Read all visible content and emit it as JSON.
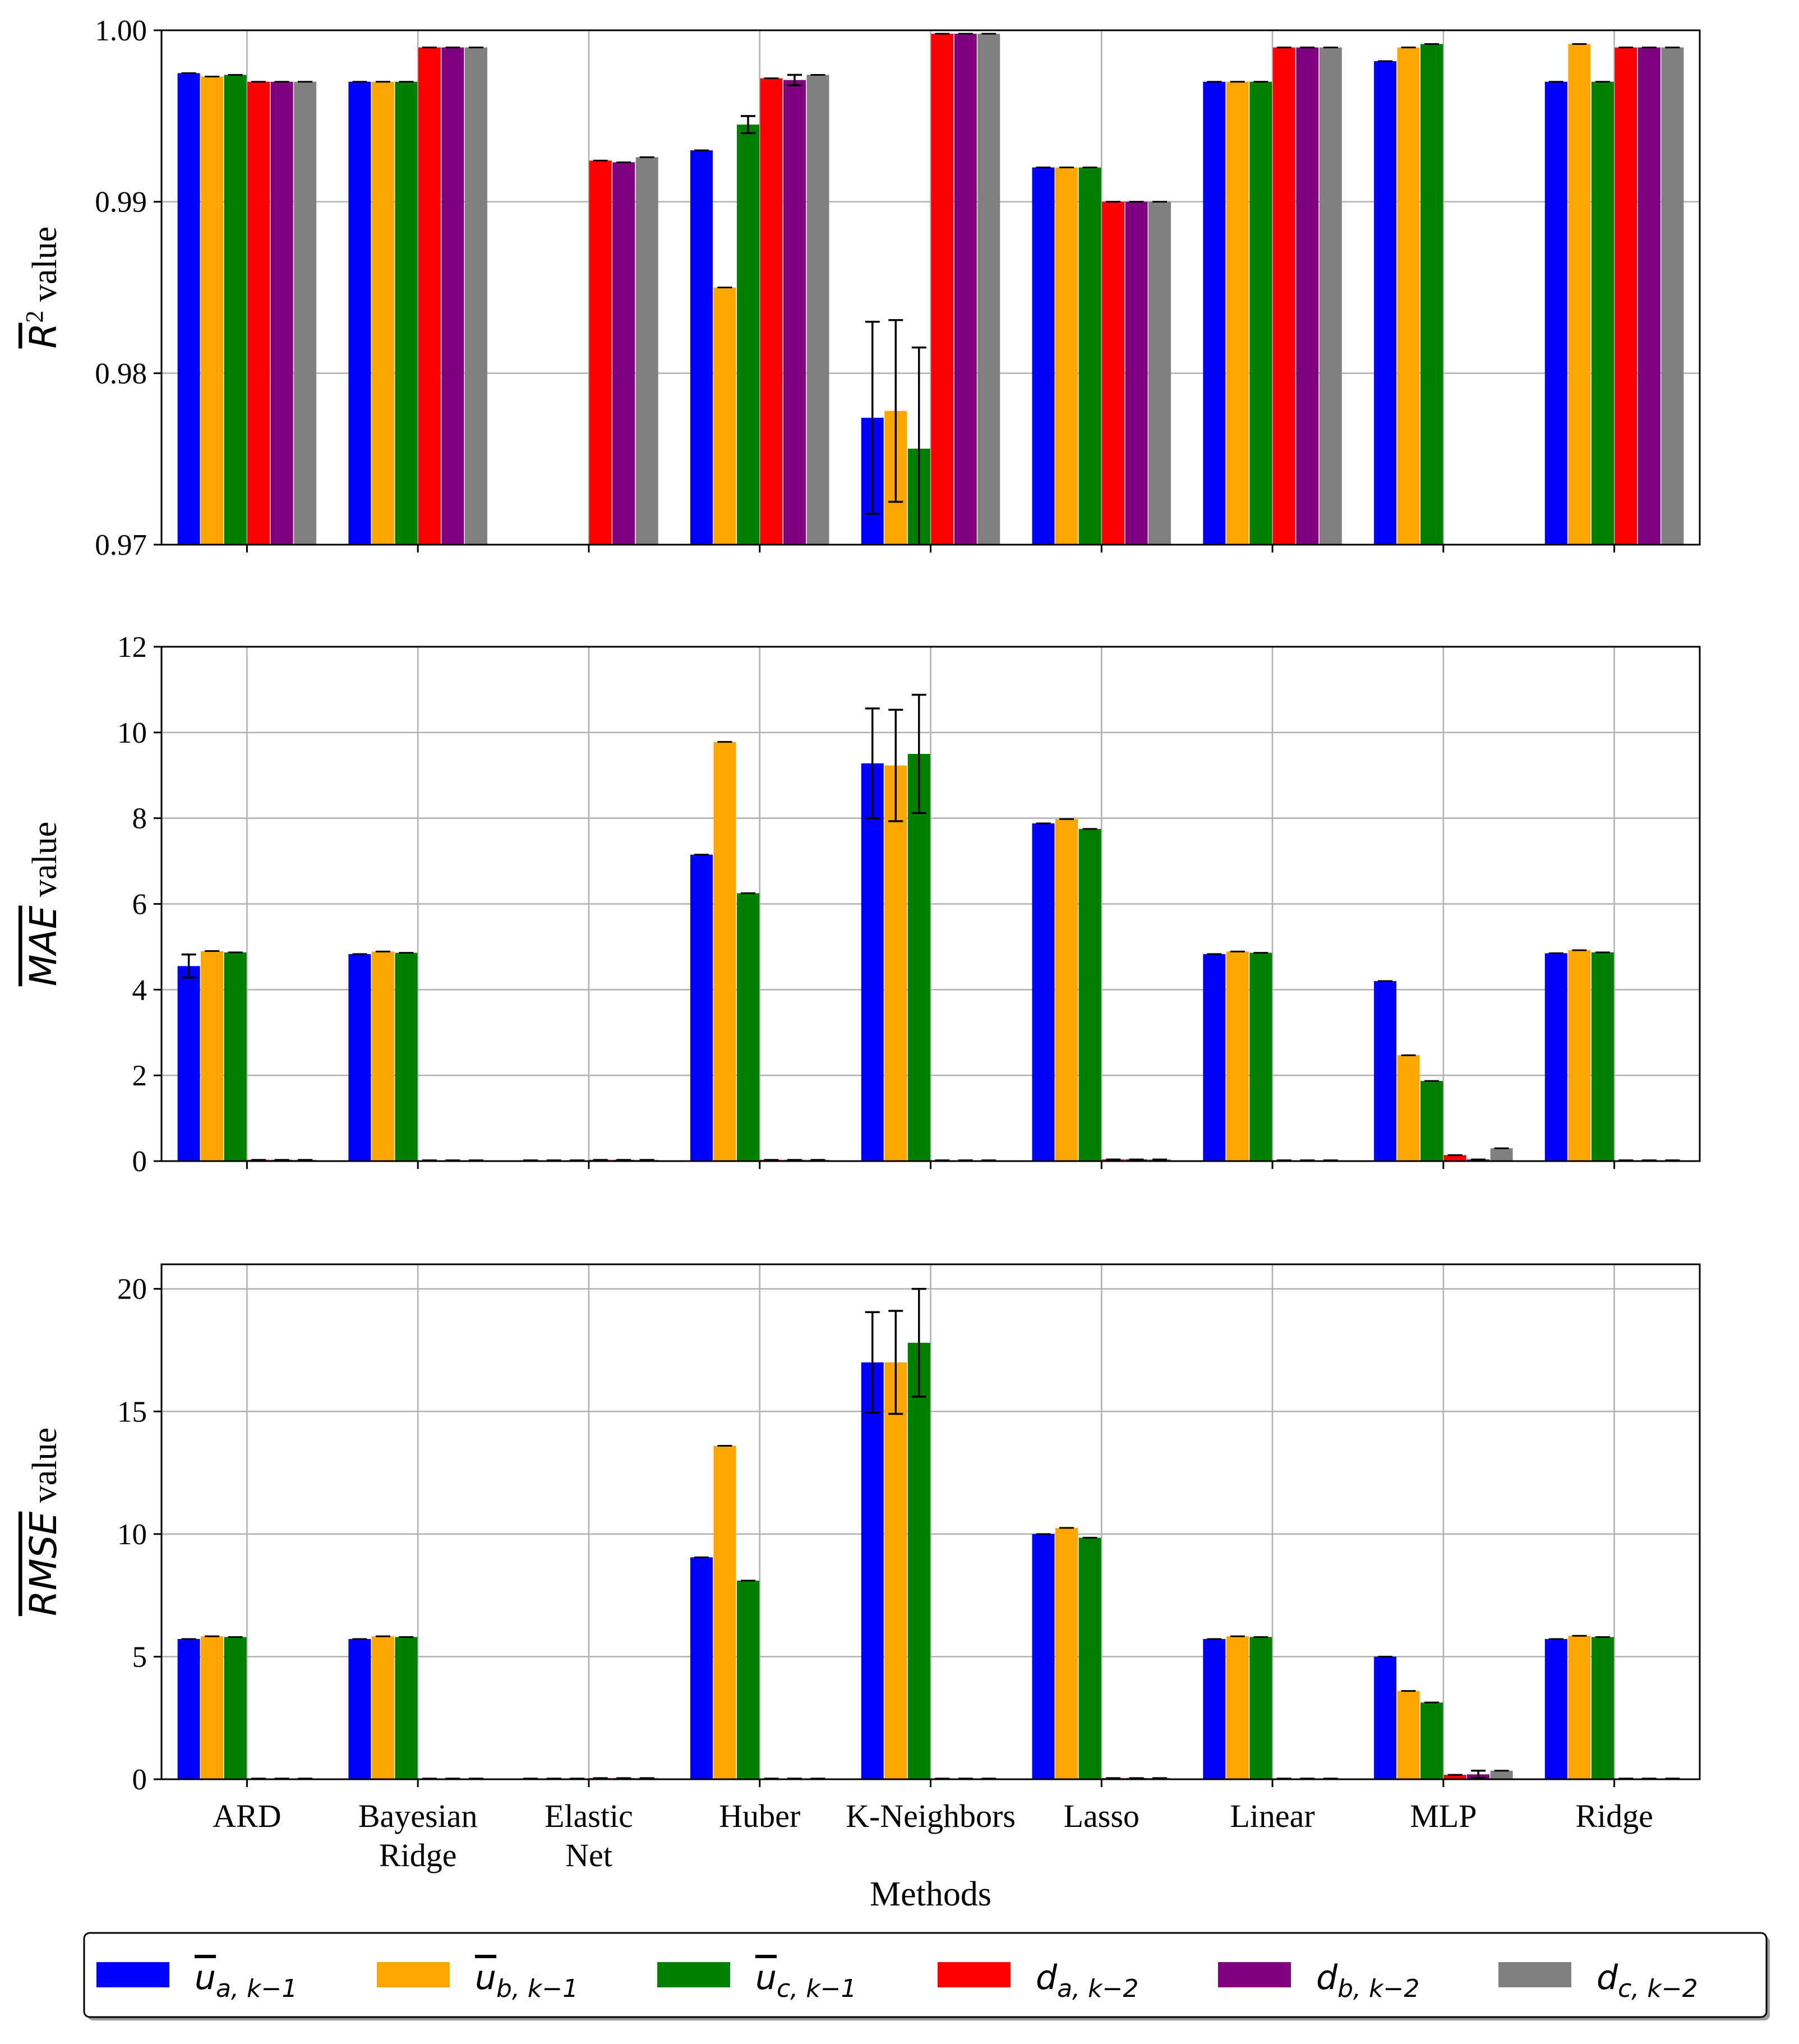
{
  "chart_data": {
    "type": "bar",
    "xlabel": "Methods",
    "categories": [
      [
        "ARD"
      ],
      [
        "Bayesian",
        "Ridge"
      ],
      [
        "Elastic",
        "Net"
      ],
      [
        "Huber"
      ],
      [
        "K-Neighbors"
      ],
      [
        "Lasso"
      ],
      [
        "Linear"
      ],
      [
        "MLP"
      ],
      [
        "Ridge"
      ]
    ],
    "series": [
      {
        "key": "ua",
        "color": "#0000ff",
        "legend": {
          "base": "u",
          "overline": true,
          "sub": "a, k−1"
        }
      },
      {
        "key": "ub",
        "color": "#ffa500",
        "legend": {
          "base": "u",
          "overline": true,
          "sub": "b, k−1"
        }
      },
      {
        "key": "uc",
        "color": "#008000",
        "legend": {
          "base": "u",
          "overline": true,
          "sub": "c, k−1"
        }
      },
      {
        "key": "da",
        "color": "#ff0000",
        "legend": {
          "base": "d",
          "overline": false,
          "sub": "a, k−2"
        }
      },
      {
        "key": "db",
        "color": "#800080",
        "legend": {
          "base": "d",
          "overline": false,
          "sub": "b, k−2"
        }
      },
      {
        "key": "dc",
        "color": "#808080",
        "legend": {
          "base": "d",
          "overline": false,
          "sub": "c, k−2"
        }
      }
    ],
    "panels": [
      {
        "id": "r2",
        "ylabel": {
          "main": "R",
          "sup": "2",
          "suffix": " value"
        },
        "ylim": [
          0.97,
          1.0
        ],
        "yticks": [
          0.97,
          0.98,
          0.99,
          1.0
        ],
        "ytick_labels": [
          "0.97",
          "0.98",
          "0.99",
          "1.00"
        ],
        "values": [
          [
            0.9975,
            0.9973,
            0.9974,
            0.997,
            0.997,
            0.997
          ],
          [
            0.997,
            0.997,
            0.997,
            0.999,
            0.999,
            0.999
          ],
          [
            null,
            null,
            null,
            0.9924,
            0.9923,
            0.9926
          ],
          [
            0.993,
            0.985,
            0.9945,
            0.9972,
            0.9971,
            0.9974
          ],
          [
            0.9774,
            0.9778,
            0.9756,
            0.9998,
            0.9998,
            0.9998
          ],
          [
            0.992,
            0.992,
            0.992,
            0.99,
            0.99,
            0.99
          ],
          [
            0.997,
            0.997,
            0.997,
            0.999,
            0.999,
            0.999
          ],
          [
            0.9982,
            0.999,
            0.9992,
            null,
            null,
            null
          ],
          [
            0.997,
            0.9992,
            0.997,
            0.999,
            0.999,
            0.999
          ]
        ],
        "errors": [
          [
            0,
            0,
            0,
            0,
            0,
            0
          ],
          [
            0,
            0,
            0,
            0,
            0,
            0
          ],
          [
            0,
            0,
            0,
            0,
            0,
            0
          ],
          [
            0,
            0,
            0.0005,
            0,
            0.0003,
            0
          ],
          [
            0.0056,
            0.0053,
            0.0059,
            0,
            0,
            0
          ],
          [
            0,
            0,
            0,
            0,
            0,
            0
          ],
          [
            0,
            0,
            0,
            0,
            0,
            0
          ],
          [
            0,
            0,
            0,
            0,
            0,
            0
          ],
          [
            0,
            0,
            0,
            0,
            0,
            0
          ]
        ]
      },
      {
        "id": "mae",
        "ylabel": {
          "main": "MAE",
          "sup": "",
          "suffix": " value"
        },
        "ylim": [
          0,
          12
        ],
        "yticks": [
          0,
          2,
          4,
          6,
          8,
          10,
          12
        ],
        "ytick_labels": [
          "0",
          "2",
          "4",
          "6",
          "8",
          "10",
          "12"
        ],
        "values": [
          [
            4.55,
            4.9,
            4.87,
            0.03,
            0.03,
            0.03
          ],
          [
            4.83,
            4.89,
            4.86,
            0.02,
            0.02,
            0.02
          ],
          [
            0.02,
            0.02,
            0.02,
            0.03,
            0.03,
            0.03
          ],
          [
            7.15,
            9.78,
            6.25,
            0.03,
            0.03,
            0.03
          ],
          [
            9.28,
            9.23,
            9.5,
            0.02,
            0.02,
            0.02
          ],
          [
            7.88,
            7.98,
            7.75,
            0.04,
            0.04,
            0.04
          ],
          [
            4.83,
            4.89,
            4.86,
            0.02,
            0.02,
            0.02
          ],
          [
            4.2,
            2.47,
            1.87,
            0.14,
            0.04,
            0.3
          ],
          [
            4.85,
            4.92,
            4.87,
            0.02,
            0.02,
            0.02
          ]
        ],
        "errors": [
          [
            0.27,
            0,
            0,
            0,
            0,
            0
          ],
          [
            0,
            0,
            0,
            0,
            0,
            0
          ],
          [
            0,
            0,
            0,
            0,
            0,
            0
          ],
          [
            0,
            0,
            0,
            0,
            0,
            0
          ],
          [
            1.28,
            1.3,
            1.38,
            0,
            0,
            0
          ],
          [
            0,
            0,
            0,
            0,
            0,
            0
          ],
          [
            0,
            0,
            0,
            0,
            0,
            0
          ],
          [
            0,
            0,
            0,
            0,
            0,
            0
          ],
          [
            0,
            0,
            0,
            0,
            0,
            0
          ]
        ]
      },
      {
        "id": "rmse",
        "ylabel": {
          "main": "RMSE",
          "sup": "",
          "suffix": " value"
        },
        "ylim": [
          0,
          21
        ],
        "yticks": [
          0,
          5,
          10,
          15,
          20
        ],
        "ytick_labels": [
          "0",
          "5",
          "10",
          "15",
          "20"
        ],
        "values": [
          [
            5.72,
            5.83,
            5.8,
            0.03,
            0.03,
            0.03
          ],
          [
            5.72,
            5.83,
            5.8,
            0.03,
            0.03,
            0.03
          ],
          [
            0.03,
            0.03,
            0.03,
            0.05,
            0.05,
            0.05
          ],
          [
            9.05,
            13.6,
            8.1,
            0.03,
            0.03,
            0.03
          ],
          [
            17.0,
            17.0,
            17.8,
            0.03,
            0.03,
            0.03
          ],
          [
            10.0,
            10.25,
            9.85,
            0.05,
            0.05,
            0.05
          ],
          [
            5.72,
            5.83,
            5.8,
            0.03,
            0.03,
            0.03
          ],
          [
            5.0,
            3.6,
            3.13,
            0.18,
            0.2,
            0.35
          ],
          [
            5.72,
            5.85,
            5.8,
            0.03,
            0.03,
            0.03
          ]
        ],
        "errors": [
          [
            0,
            0,
            0,
            0,
            0,
            0
          ],
          [
            0,
            0,
            0,
            0,
            0,
            0
          ],
          [
            0,
            0,
            0,
            0,
            0,
            0
          ],
          [
            0,
            0,
            0,
            0,
            0,
            0
          ],
          [
            2.05,
            2.1,
            2.2,
            0,
            0,
            0
          ],
          [
            0,
            0,
            0,
            0,
            0,
            0
          ],
          [
            0,
            0,
            0,
            0,
            0,
            0
          ],
          [
            0,
            0,
            0,
            0,
            0.15,
            0
          ],
          [
            0,
            0,
            0,
            0,
            0,
            0
          ]
        ]
      }
    ]
  }
}
